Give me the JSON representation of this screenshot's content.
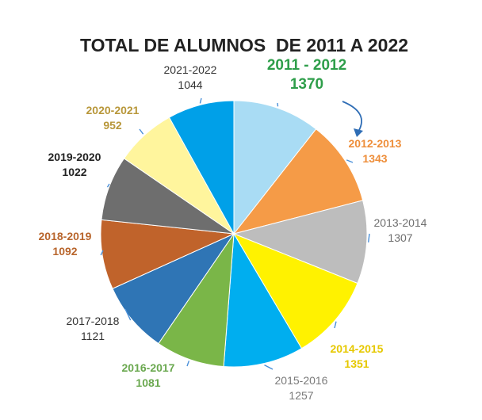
{
  "chart_data": {
    "type": "pie",
    "title": "TOTAL DE ALUMNOS  DE 2011 A 2022",
    "slices": [
      {
        "label": "2011 - 2012",
        "value": 1370,
        "display_value": "1370",
        "color": "#A9DCF4",
        "label_color": "#2E9E4A",
        "emphasized": true
      },
      {
        "label": "2012-2013",
        "value": 1343,
        "display_value": "1343",
        "color": "#F59B47",
        "label_color": "#EE8E3A"
      },
      {
        "label": "2013-2014",
        "value": 1307,
        "display_value": "1307",
        "color": "#BDBDBD",
        "label_color": "#6E6E6E"
      },
      {
        "label": "2014-2015",
        "value": 1351,
        "display_value": "1351",
        "color": "#FFF200",
        "label_color": "#E6C800"
      },
      {
        "label": "2015-2016",
        "value": 1257,
        "display_value": "1257",
        "color": "#00AEEF",
        "label_color": "#7A7A7A"
      },
      {
        "label": "2016-2017",
        "value": 1081,
        "display_value": "1081",
        "color": "#7AB648",
        "label_color": "#6AA84F"
      },
      {
        "label": "2017-2018",
        "value": 1121,
        "display_value": "1121",
        "color": "#2F75B5",
        "label_color": "#333333"
      },
      {
        "label": "2018-2019",
        "value": 1092,
        "display_value": "1092",
        "color": "#C0632B",
        "label_color": "#B8652C"
      },
      {
        "label": "2019-2020",
        "value": 1022,
        "display_value": "1022",
        "color": "#6E6E6E",
        "label_color": "#222222"
      },
      {
        "label": "2020-2021",
        "value": 952,
        "display_value": "952",
        "color": "#FFF59D",
        "label_color": "#B8973A"
      },
      {
        "label": "2021-2022",
        "value": 1044,
        "display_value": "1044",
        "color": "#00A0E8",
        "label_color": "#333333"
      }
    ],
    "legend": "none",
    "leader_color": "#4A90D9"
  }
}
